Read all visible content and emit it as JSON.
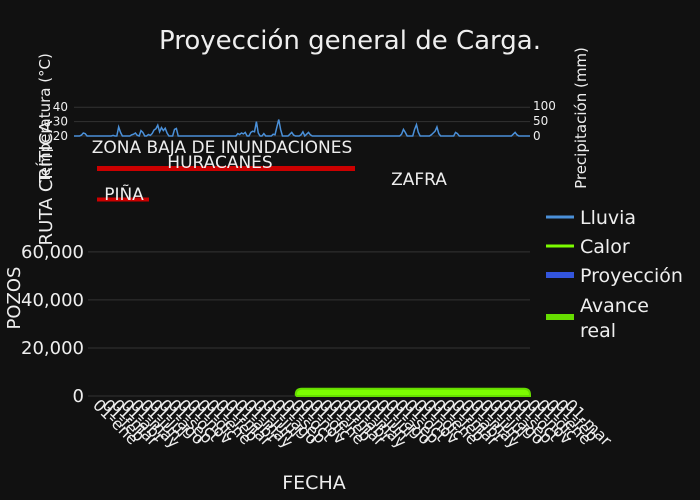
{
  "chart_data": {
    "title": "Proyección general de Carga.",
    "top_panel": {
      "type": "line",
      "ylabel_left": "Temperatura (°C)",
      "ylabel_right": "Precipitación (mm)",
      "ylim_left": [
        20,
        45
      ],
      "yticks_left": [
        20,
        30,
        40
      ],
      "ylim_right": [
        0,
        120
      ],
      "yticks_right": [
        0,
        50,
        100
      ],
      "series": [
        {
          "name": "Lluvia",
          "color": "#4a90d9",
          "values": [
            0,
            0,
            0,
            0,
            3,
            10,
            8,
            0,
            0,
            0,
            0,
            0,
            0,
            0,
            0,
            0,
            0,
            0,
            0,
            0,
            0,
            2,
            0,
            0,
            30,
            12,
            0,
            0,
            0,
            0,
            0,
            4,
            6,
            10,
            2,
            0,
            18,
            12,
            0,
            0,
            5,
            2,
            8,
            20,
            24,
            36,
            14,
            28,
            18,
            26,
            10,
            0,
            0,
            0,
            22,
            25,
            0,
            0,
            0,
            0,
            0,
            0,
            0,
            0,
            0,
            0,
            0,
            0,
            0,
            0,
            0,
            0,
            0,
            0,
            0,
            0,
            0,
            0,
            0,
            0,
            0,
            0,
            0,
            0,
            0,
            0,
            0,
            0,
            8,
            5,
            10,
            7,
            12,
            0,
            0,
            12,
            16,
            14,
            48,
            10,
            0,
            0,
            8,
            0,
            0,
            0,
            0,
            6,
            4,
            30,
            55,
            22,
            0,
            0,
            0,
            0,
            6,
            12,
            3,
            0,
            0,
            0,
            4,
            14,
            0,
            6,
            12,
            4,
            0,
            0,
            0,
            0,
            0,
            0,
            0,
            0,
            0,
            0,
            0,
            0,
            0,
            0,
            0,
            0,
            0,
            0,
            0,
            0,
            0,
            0,
            0,
            0,
            0,
            0,
            0,
            0,
            0,
            0,
            0,
            0,
            0,
            0,
            0,
            0,
            0,
            0,
            0,
            0,
            0,
            0,
            0,
            0,
            0,
            0,
            0,
            0,
            6,
            22,
            12,
            0,
            0,
            0,
            0,
            22,
            38,
            12,
            0,
            0,
            0,
            0,
            0,
            0,
            4,
            10,
            16,
            30,
            8,
            0,
            0,
            0,
            0,
            0,
            0,
            0,
            0,
            12,
            8,
            0,
            0,
            0,
            0,
            0,
            0,
            0,
            0,
            0,
            0,
            0,
            0,
            0,
            0,
            0,
            0,
            0,
            0,
            0,
            0,
            0,
            0,
            0,
            0,
            0,
            0,
            0,
            0,
            0,
            6,
            12,
            4,
            0,
            0,
            0,
            0,
            0,
            0,
            0
          ]
        }
      ]
    },
    "gantt_panel": {
      "type": "gantt",
      "ylabel": "RUTA CRÍTICA",
      "bars": [
        {
          "label": "ZONA BAJA DE INUNDACIONES",
          "color": "#cc0000"
        },
        {
          "label": "HURACANES",
          "color": "#cc0000"
        },
        {
          "label": "ZAFRA",
          "color": "#cc0000"
        },
        {
          "label": "PIÑA",
          "color": "#cc0000"
        }
      ]
    },
    "main_panel": {
      "type": "area",
      "xlabel": "FECHA",
      "ylabel": "POZOS",
      "ylim": [
        0,
        72000
      ],
      "yticks": [
        0,
        20000,
        40000,
        60000
      ],
      "ytick_labels": [
        "0",
        "20,000",
        "40,000",
        "60,000"
      ],
      "x_start_fraction": 0.47,
      "series_value": 3000,
      "xtick_labels": [
        "01-ene",
        "01-feb",
        "01-mar",
        "01-abr",
        "01-may",
        "01-jun",
        "01-jul",
        "01-ago",
        "01-sep",
        "01-oct",
        "01-nov",
        "01-dic",
        "01-ene",
        "01-feb",
        "01-mar",
        "01-abr",
        "01-may",
        "01-jun",
        "01-jul",
        "01-ago",
        "01-sep",
        "01-oct",
        "01-nov",
        "01-dic",
        "01-ene",
        "01-feb",
        "01-mar",
        "01-abr",
        "01-may",
        "01-jun",
        "01-jul",
        "01-ago",
        "01-sep",
        "01-oct",
        "01-nov",
        "01-dic",
        "01-ene",
        "01-feb",
        "01-mar",
        "01-abr",
        "01-may",
        "01-jun",
        "01-jul",
        "01-ago",
        "01-sep",
        "01-oct",
        "01-nov",
        "01-dic",
        "01-ene",
        "01-feb",
        "01-mar"
      ]
    },
    "legend": {
      "placement": "right",
      "items": [
        {
          "label": "Lluvia",
          "color": "#4a90d9"
        },
        {
          "label": "Calor",
          "color": "#7cfc00"
        },
        {
          "label": "Proyección",
          "color": "#3355dd"
        },
        {
          "label": "Avance real",
          "color": "#66dd00"
        }
      ]
    },
    "colors": {
      "background": "#111111",
      "grid": "#333333",
      "text": "#eeeeee"
    }
  }
}
